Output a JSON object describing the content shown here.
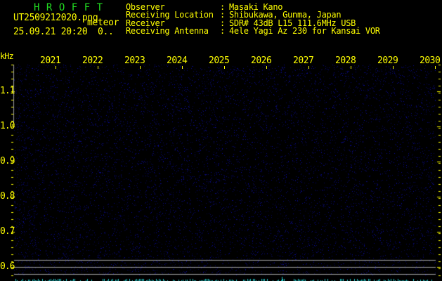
{
  "app_title": "HROFFT",
  "file_name": "UT2509212020.png",
  "mode_label": "meteor",
  "datetime": "25.09.21 20:20",
  "count": "0..",
  "info": [
    {
      "label": "Observer",
      "value": "Masaki Kano"
    },
    {
      "label": "Receiving Location",
      "value": "Shibukawa, Gunma, Japan"
    },
    {
      "label": "Receiver",
      "value": "SDR# 43dB L15 111.6MHz USB"
    },
    {
      "label": "Receiving Antenna",
      "value": "4ele Yagi Az 230 for Kansai VOR"
    }
  ],
  "freq_axis": {
    "unit": "kHz",
    "labels": [
      "1.1",
      "1.0",
      "0.9",
      "0.8",
      "0.7",
      "0.6"
    ]
  },
  "time_axis": {
    "labels": [
      "2021",
      "2022",
      "2023",
      "2024",
      "2025",
      "2026",
      "2027",
      "2028",
      "2029",
      "2030"
    ]
  },
  "colors": {
    "text": "#ffff00",
    "title": "#22dd22",
    "noise": "#1a1a8a",
    "reference_lines": "#a0a0a0",
    "bottom_signal": "#22cccc"
  }
}
